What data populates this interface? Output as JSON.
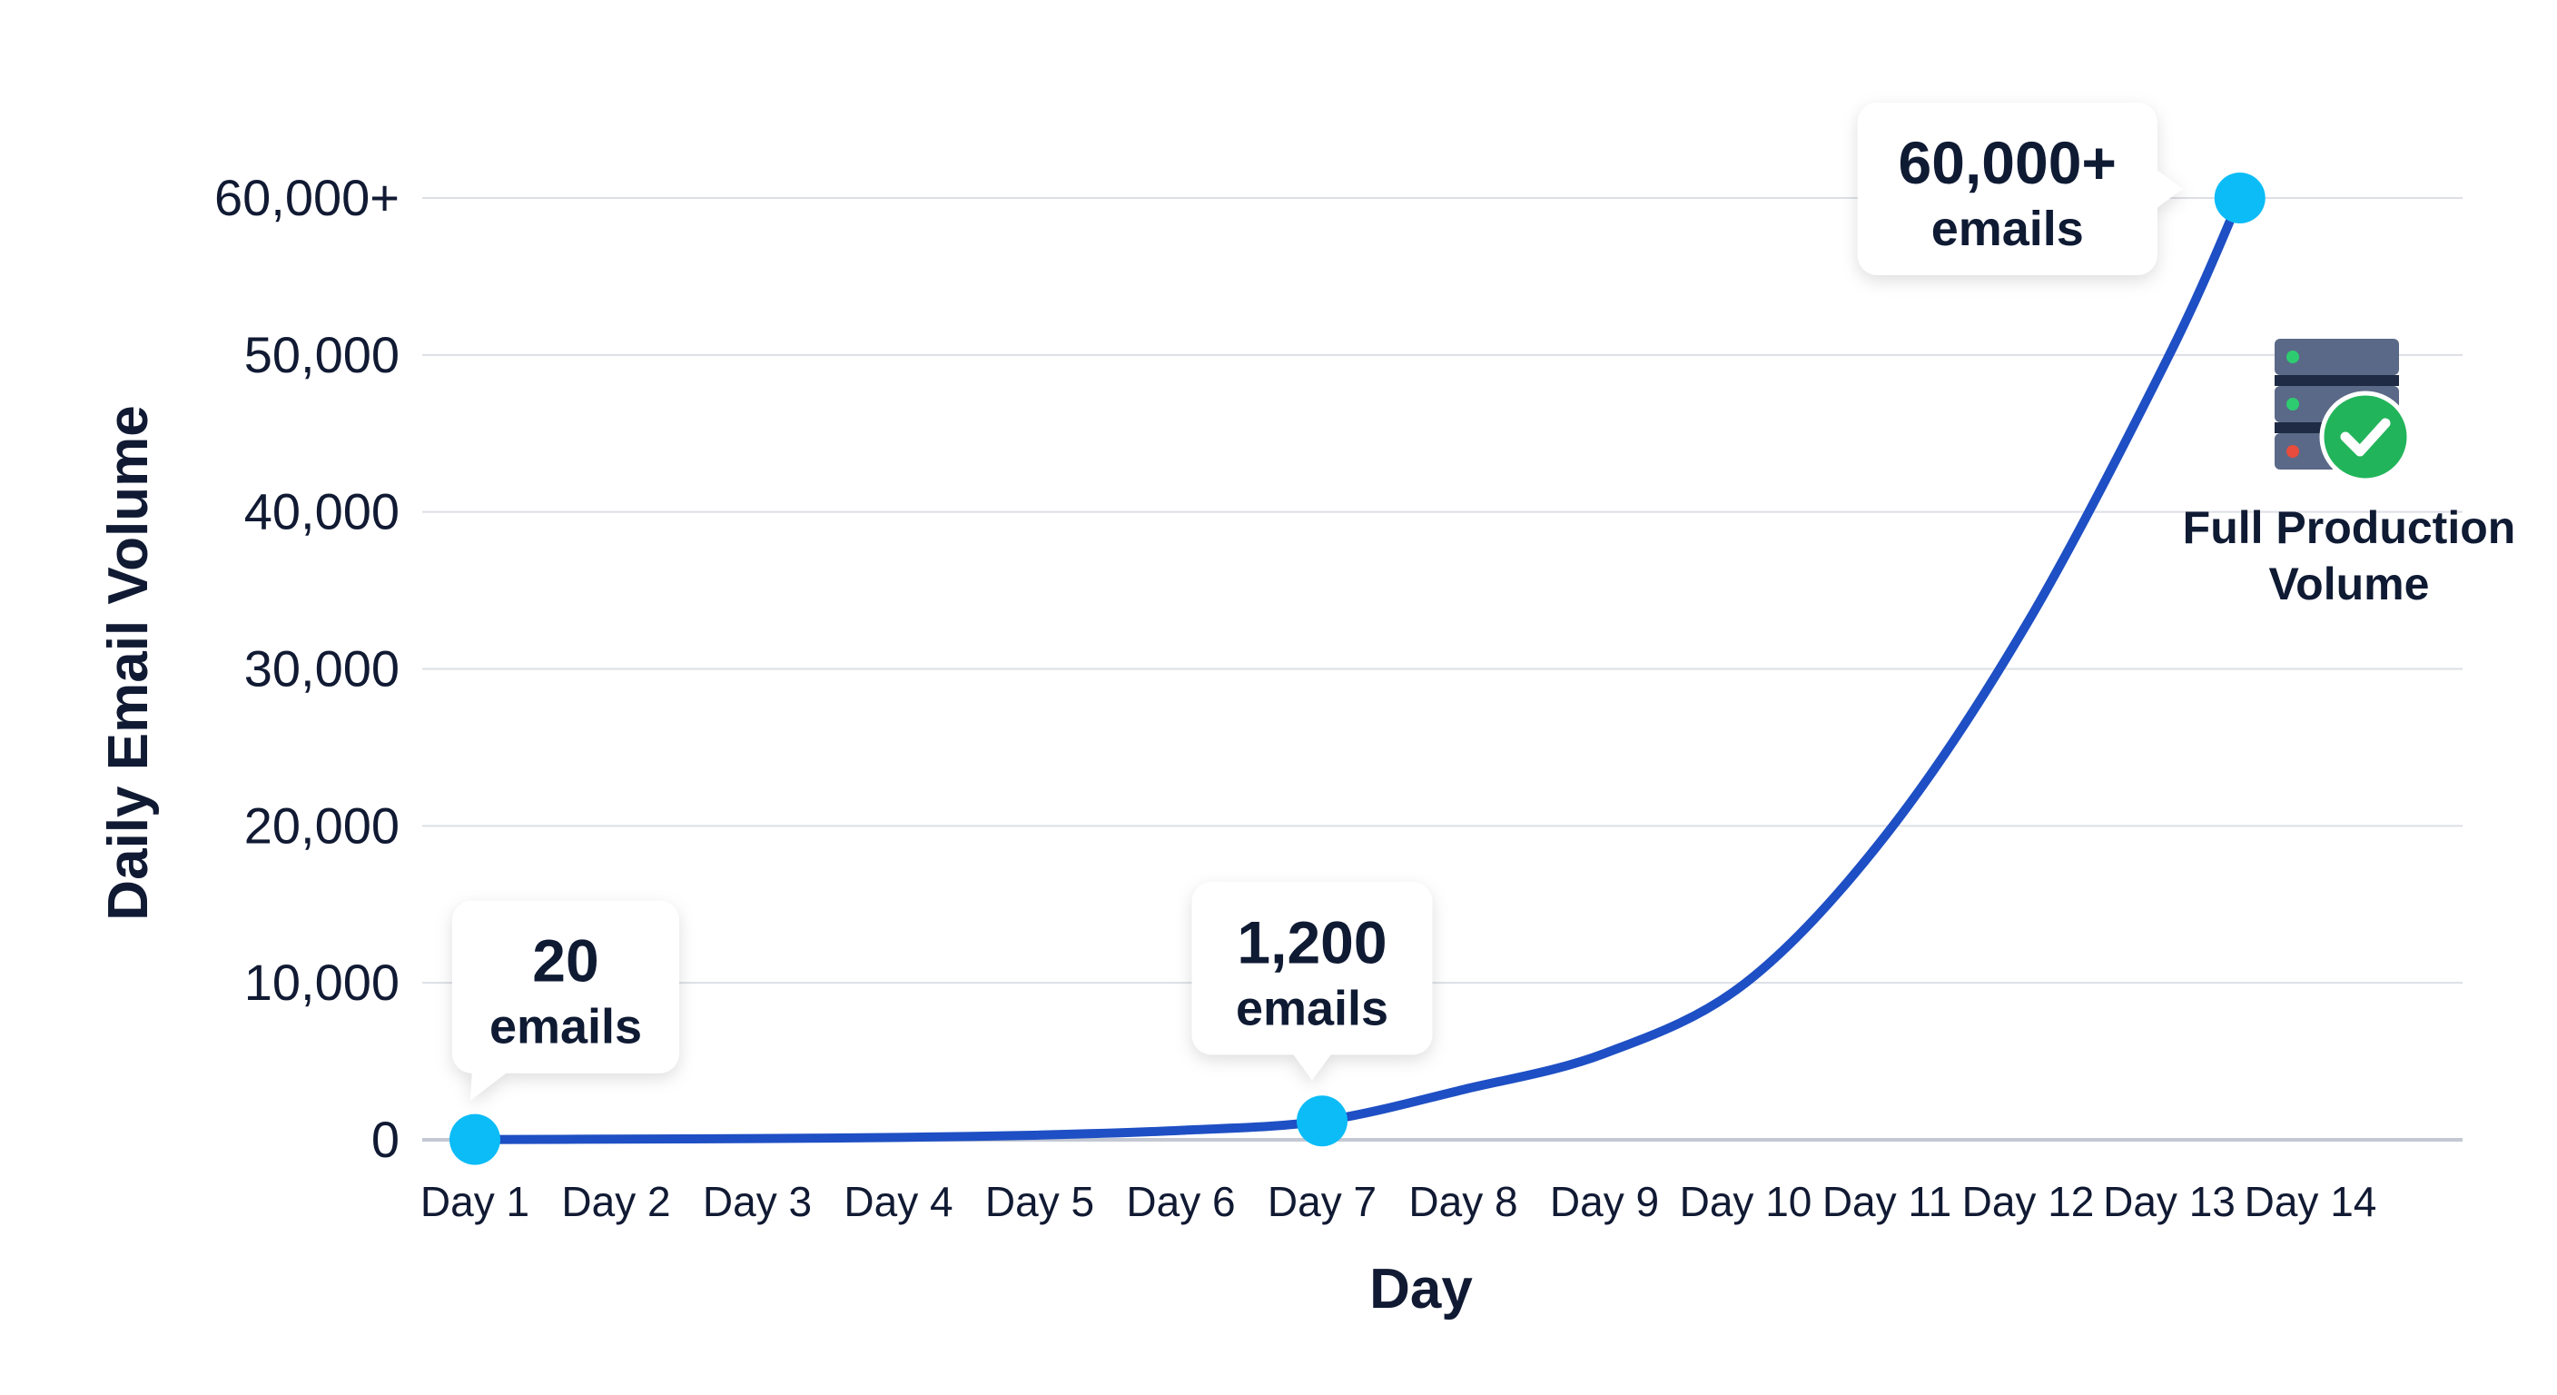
{
  "chart_data": {
    "type": "line",
    "xlabel": "Day",
    "ylabel": "Daily Email Volume",
    "categories": [
      "Day 1",
      "Day 2",
      "Day 3",
      "Day 4",
      "Day 5",
      "Day 6",
      "Day 7",
      "Day 8",
      "Day 9",
      "Day 10",
      "Day 11",
      "Day 12",
      "Day 13",
      "Day 14"
    ],
    "y_ticks": [
      "0",
      "10,000",
      "20,000",
      "30,000",
      "40,000",
      "50,000",
      "60,000+"
    ],
    "ylim": [
      0,
      60000
    ],
    "grid": true,
    "line_color": "#1e4fc4",
    "marker_color": "#0bbcf7",
    "series": [
      {
        "points": [
          {
            "x": 1,
            "y": 20
          },
          {
            "x": 2,
            "y": 40
          },
          {
            "x": 3,
            "y": 80
          },
          {
            "x": 4,
            "y": 150
          },
          {
            "x": 5,
            "y": 300
          },
          {
            "x": 6,
            "y": 600
          },
          {
            "x": 7,
            "y": 1200
          },
          {
            "x": 8,
            "y": 3200
          },
          {
            "x": 9,
            "y": 5500
          },
          {
            "x": 10,
            "y": 10000
          },
          {
            "x": 11,
            "y": 19500
          },
          {
            "x": 12,
            "y": 33000
          },
          {
            "x": 13,
            "y": 50000
          },
          {
            "x": 13.5,
            "y": 60000
          }
        ]
      }
    ],
    "highlights": [
      {
        "x": 1,
        "y": 20,
        "value_label": "20",
        "unit_label": "emails"
      },
      {
        "x": 7,
        "y": 1200,
        "value_label": "1,200",
        "unit_label": "emails"
      },
      {
        "x": 13.5,
        "y": 60000,
        "value_label": "60,000+",
        "unit_label": "emails"
      }
    ],
    "annotation": {
      "icon": "server-check-icon",
      "lines": [
        "Full Production",
        "Volume"
      ]
    }
  }
}
